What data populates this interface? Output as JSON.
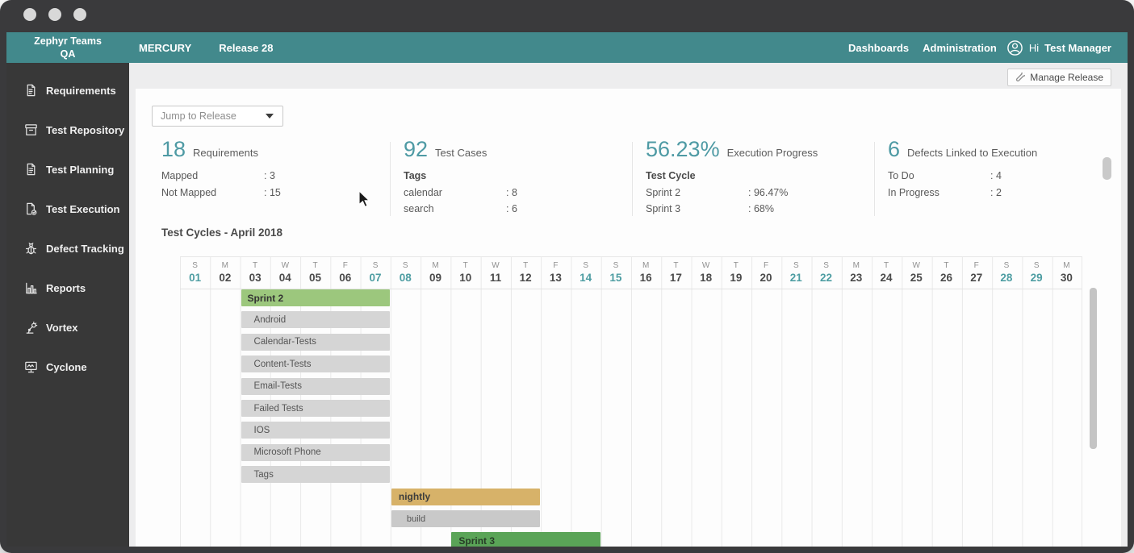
{
  "appbar": {
    "brand_line1": "Zephyr Teams",
    "brand_line2": "QA",
    "nav_left": [
      "MERCURY",
      "Release 28"
    ],
    "nav_right": [
      "Dashboards",
      "Administration"
    ],
    "greeting": "Hi",
    "user": "Test Manager"
  },
  "sidebar": {
    "items": [
      {
        "label": "Requirements",
        "icon": "requirements-document-icon"
      },
      {
        "label": "Test Repository",
        "icon": "repository-archive-icon"
      },
      {
        "label": "Test Planning",
        "icon": "planning-document-icon"
      },
      {
        "label": "Test Execution",
        "icon": "execution-document-check-icon"
      },
      {
        "label": "Defect Tracking",
        "icon": "bug-icon"
      },
      {
        "label": "Reports",
        "icon": "bar-chart-icon"
      },
      {
        "label": "Vortex",
        "icon": "robot-arm-icon"
      },
      {
        "label": "Cyclone",
        "icon": "monitor-circuit-icon"
      }
    ]
  },
  "toolbar": {
    "manage_release_label": "Manage Release"
  },
  "jump_select": {
    "placeholder": "Jump to Release"
  },
  "cards": [
    {
      "value": "18",
      "label": "Requirements",
      "subtitle": null,
      "rows": [
        [
          "Mapped",
          ": 3"
        ],
        [
          "Not Mapped",
          ": 15"
        ]
      ]
    },
    {
      "value": "92",
      "label": "Test Cases",
      "subtitle": "Tags",
      "rows": [
        [
          "calendar",
          ": 8"
        ],
        [
          "search",
          ": 6"
        ]
      ]
    },
    {
      "value": "56.23%",
      "label": "Execution Progress",
      "subtitle": "Test Cycle",
      "rows": [
        [
          "Sprint 2",
          ": 96.47%"
        ],
        [
          "Sprint 3",
          ": 68%"
        ]
      ]
    },
    {
      "value": "6",
      "label": "Defects Linked to Execution",
      "subtitle": null,
      "rows": [
        [
          "To Do",
          ": 4"
        ],
        [
          "In Progress",
          ": 2"
        ]
      ]
    }
  ],
  "chart_data": {
    "type": "gantt",
    "title": "Test Cycles - April 2018",
    "days": [
      {
        "letter": "S",
        "num": "01",
        "weekend": true
      },
      {
        "letter": "M",
        "num": "02",
        "weekend": false
      },
      {
        "letter": "T",
        "num": "03",
        "weekend": false
      },
      {
        "letter": "W",
        "num": "04",
        "weekend": false
      },
      {
        "letter": "T",
        "num": "05",
        "weekend": false
      },
      {
        "letter": "F",
        "num": "06",
        "weekend": false
      },
      {
        "letter": "S",
        "num": "07",
        "weekend": true
      },
      {
        "letter": "S",
        "num": "08",
        "weekend": true
      },
      {
        "letter": "M",
        "num": "09",
        "weekend": false
      },
      {
        "letter": "T",
        "num": "10",
        "weekend": false
      },
      {
        "letter": "W",
        "num": "11",
        "weekend": false
      },
      {
        "letter": "T",
        "num": "12",
        "weekend": false
      },
      {
        "letter": "F",
        "num": "13",
        "weekend": false
      },
      {
        "letter": "S",
        "num": "14",
        "weekend": true
      },
      {
        "letter": "S",
        "num": "15",
        "weekend": true
      },
      {
        "letter": "M",
        "num": "16",
        "weekend": false
      },
      {
        "letter": "T",
        "num": "17",
        "weekend": false
      },
      {
        "letter": "W",
        "num": "18",
        "weekend": false
      },
      {
        "letter": "T",
        "num": "19",
        "weekend": false
      },
      {
        "letter": "F",
        "num": "20",
        "weekend": false
      },
      {
        "letter": "S",
        "num": "21",
        "weekend": true
      },
      {
        "letter": "S",
        "num": "22",
        "weekend": true
      },
      {
        "letter": "M",
        "num": "23",
        "weekend": false
      },
      {
        "letter": "T",
        "num": "24",
        "weekend": false
      },
      {
        "letter": "W",
        "num": "25",
        "weekend": false
      },
      {
        "letter": "T",
        "num": "26",
        "weekend": false
      },
      {
        "letter": "F",
        "num": "27",
        "weekend": false
      },
      {
        "letter": "S",
        "num": "28",
        "weekend": true
      },
      {
        "letter": "S",
        "num": "29",
        "weekend": true
      },
      {
        "letter": "M",
        "num": "30",
        "weekend": false
      }
    ],
    "bars": [
      {
        "label": "Sprint 2",
        "start": 3,
        "end": 7,
        "kind": "sprint"
      },
      {
        "label": "Android",
        "start": 3,
        "end": 7,
        "kind": "folder"
      },
      {
        "label": "Calendar-Tests",
        "start": 3,
        "end": 7,
        "kind": "folder"
      },
      {
        "label": "Content-Tests",
        "start": 3,
        "end": 7,
        "kind": "folder"
      },
      {
        "label": "Email-Tests",
        "start": 3,
        "end": 7,
        "kind": "folder"
      },
      {
        "label": "Failed Tests",
        "start": 3,
        "end": 7,
        "kind": "folder"
      },
      {
        "label": "IOS",
        "start": 3,
        "end": 7,
        "kind": "folder"
      },
      {
        "label": "Microsoft Phone",
        "start": 3,
        "end": 7,
        "kind": "folder"
      },
      {
        "label": "Tags",
        "start": 3,
        "end": 7,
        "kind": "folder"
      },
      {
        "label": "nightly",
        "start": 8,
        "end": 12,
        "kind": "cycle"
      },
      {
        "label": "build",
        "start": 8,
        "end": 12,
        "kind": "build"
      },
      {
        "label": "Sprint 3",
        "start": 10,
        "end": 14,
        "kind": "sprint2"
      }
    ]
  },
  "colors": {
    "header_teal": "#42898c",
    "accent_teal": "#4e9aa4",
    "weekend_teal": "#4d9da2",
    "sprint_light_green": "#9cc77d",
    "sprint_dark_green": "#5aa457",
    "cycle_tan": "#d7b269",
    "folder_gray": "#d5d5d5",
    "sidebar_dark": "#383838"
  }
}
